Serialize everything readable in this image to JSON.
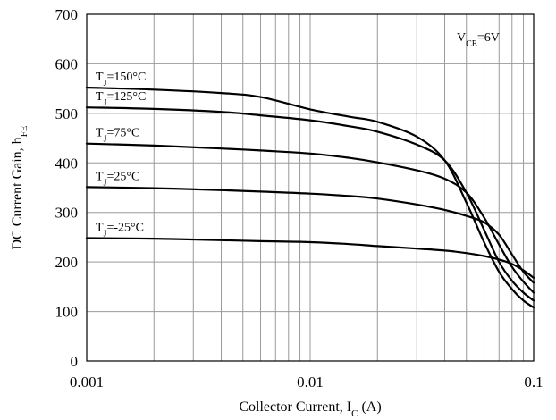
{
  "chart_data": {
    "type": "line",
    "x_scale": "log",
    "xlim": [
      0.001,
      0.1
    ],
    "ylim": [
      0,
      700
    ],
    "xlabel": {
      "main": "Collector Current, I",
      "sub": "C",
      "tail": " (A)"
    },
    "ylabel": {
      "main": "DC Current Gain, h",
      "sub": "FE"
    },
    "x_ticks": [
      {
        "value": 0.001,
        "label": "0.001"
      },
      {
        "value": 0.01,
        "label": "0.01"
      },
      {
        "value": 0.1,
        "label": "0.1"
      }
    ],
    "y_ticks": [
      {
        "value": 0,
        "label": "0"
      },
      {
        "value": 100,
        "label": "100"
      },
      {
        "value": 200,
        "label": "200"
      },
      {
        "value": 300,
        "label": "300"
      },
      {
        "value": 400,
        "label": "400"
      },
      {
        "value": 500,
        "label": "500"
      },
      {
        "value": 600,
        "label": "600"
      },
      {
        "value": 700,
        "label": "700"
      }
    ],
    "grid": true,
    "condition": {
      "main": "V",
      "sub": "CE",
      "tail": "=6V"
    },
    "series": [
      {
        "name": "T_J=150°C",
        "label": {
          "main": "T",
          "sub": "J",
          "tail": "=150°C"
        },
        "x": [
          0.001,
          0.002,
          0.004,
          0.006,
          0.01,
          0.015,
          0.02,
          0.03,
          0.04,
          0.05,
          0.06,
          0.07,
          0.08,
          0.09,
          0.1
        ],
        "y": [
          552,
          548,
          541,
          533,
          508,
          493,
          483,
          453,
          405,
          320,
          240,
          180,
          145,
          122,
          108
        ]
      },
      {
        "name": "T_J=125°C",
        "label": {
          "main": "T",
          "sub": "J",
          "tail": "=125°C"
        },
        "x": [
          0.001,
          0.002,
          0.004,
          0.006,
          0.01,
          0.015,
          0.02,
          0.03,
          0.04,
          0.05,
          0.06,
          0.07,
          0.08,
          0.09,
          0.1
        ],
        "y": [
          512,
          509,
          503,
          496,
          486,
          474,
          463,
          437,
          405,
          340,
          265,
          200,
          162,
          138,
          122
        ]
      },
      {
        "name": "T_J=75°C",
        "label": {
          "main": "T",
          "sub": "J",
          "tail": "=75°C"
        },
        "x": [
          0.001,
          0.002,
          0.004,
          0.006,
          0.01,
          0.015,
          0.02,
          0.03,
          0.04,
          0.05,
          0.06,
          0.07,
          0.08,
          0.09,
          0.1
        ],
        "y": [
          439,
          435,
          429,
          425,
          419,
          410,
          401,
          385,
          368,
          340,
          290,
          235,
          190,
          160,
          138
        ]
      },
      {
        "name": "T_J=25°C",
        "label": {
          "main": "T",
          "sub": "J",
          "tail": "=25°C"
        },
        "x": [
          0.001,
          0.002,
          0.004,
          0.006,
          0.01,
          0.015,
          0.02,
          0.03,
          0.04,
          0.05,
          0.06,
          0.07,
          0.08,
          0.09,
          0.1
        ],
        "y": [
          351,
          349,
          345,
          342,
          338,
          333,
          328,
          316,
          305,
          293,
          280,
          255,
          215,
          180,
          158
        ]
      },
      {
        "name": "T_J=-25°C",
        "label": {
          "main": "T",
          "sub": "J",
          "tail": "=-25°C"
        },
        "x": [
          0.001,
          0.002,
          0.004,
          0.006,
          0.01,
          0.015,
          0.02,
          0.03,
          0.04,
          0.05,
          0.06,
          0.07,
          0.08,
          0.09,
          0.1
        ],
        "y": [
          248,
          247,
          244,
          242,
          240,
          236,
          232,
          227,
          223,
          218,
          212,
          205,
          196,
          183,
          168
        ]
      }
    ]
  }
}
